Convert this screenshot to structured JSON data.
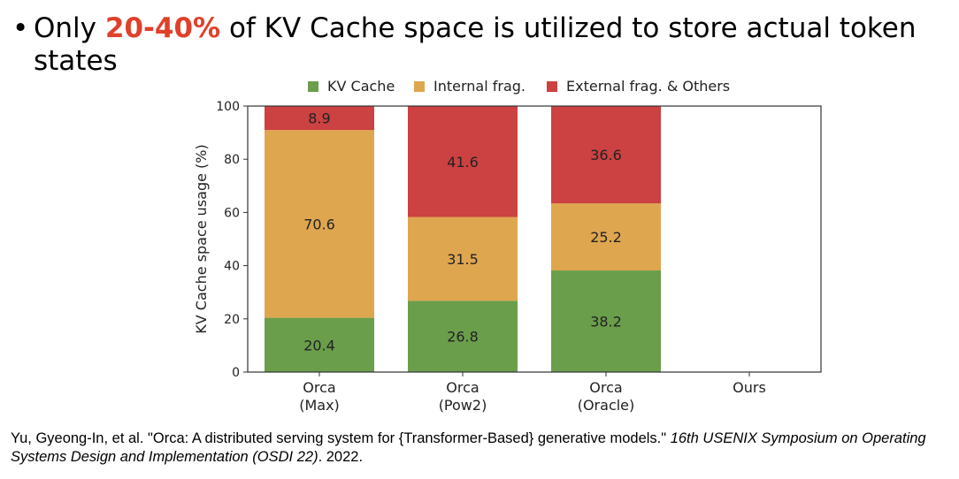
{
  "headline": {
    "bullet": "•",
    "prefix": "Only ",
    "highlight": "20-40%",
    "suffix": " of KV Cache space is utilized to store actual token states",
    "highlight_color": "#e0402a"
  },
  "citation": {
    "plain": "Yu, Gyeong-In, et al. \"Orca: A distributed serving system for {Transformer-Based} generative models.\" ",
    "italic": "16th USENIX Symposium on Operating Systems Design and Implementation (OSDI 22)",
    "tail": ". 2022."
  },
  "chart_data": {
    "type": "bar",
    "stacked": true,
    "categories": [
      [
        "Orca",
        "(Max)"
      ],
      [
        "Orca",
        "(Pow2)"
      ],
      [
        "Orca",
        "(Oracle)"
      ],
      [
        "Ours"
      ]
    ],
    "series": [
      {
        "name": "KV Cache",
        "color": "#6a9e4b",
        "values": [
          20.4,
          26.8,
          38.2,
          null
        ]
      },
      {
        "name": "Internal frag.",
        "color": "#dfa650",
        "values": [
          70.6,
          31.5,
          25.2,
          null
        ]
      },
      {
        "name": "External frag. & Others",
        "color": "#cc4141",
        "values": [
          8.9,
          41.6,
          36.6,
          null
        ]
      }
    ],
    "ylabel": "KV Cache space usage (%)",
    "xlabel": "",
    "ylim": [
      0,
      100
    ],
    "yticks": [
      0,
      20,
      40,
      60,
      80,
      100
    ],
    "legend_position": "top",
    "grid": false
  }
}
